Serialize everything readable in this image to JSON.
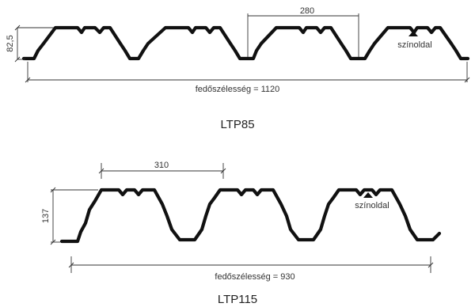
{
  "diagrams": [
    {
      "caption": "LTP85",
      "height_label": "82,5",
      "pitch_label": "280",
      "width_label": "fedőszélesség = 1120",
      "side_label": "színoldal"
    },
    {
      "caption": "LTP115",
      "height_label": "137",
      "pitch_label": "310",
      "width_label": "fedőszélesség = 930",
      "side_label": "színoldal"
    }
  ]
}
